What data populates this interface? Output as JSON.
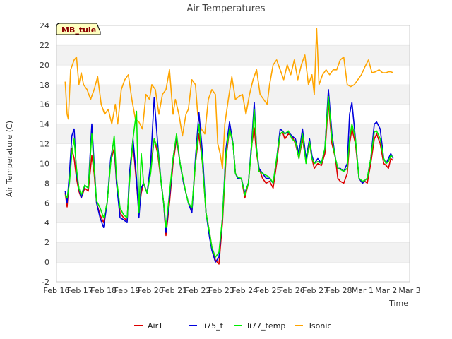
{
  "chart_data": {
    "type": "line",
    "title": "Air Temperatures",
    "xlabel": "Time",
    "ylabel": "Air Temperature (C)",
    "station_label": "MB_tule",
    "x_tick_labels": [
      "Feb 16",
      "Feb 17",
      "Feb 18",
      "Feb 19",
      "Feb 20",
      "Feb 21",
      "Feb 22",
      "Feb 23",
      "Feb 24",
      "Feb 25",
      "Feb 26",
      "Feb 27",
      "Feb 28",
      "Mar 1",
      "Mar 2",
      "Mar 3"
    ],
    "x_units": "days since Feb 16",
    "xlim": [
      0,
      15
    ],
    "ylim": [
      -2,
      24
    ],
    "y_ticks": [
      -2,
      0,
      2,
      4,
      6,
      8,
      10,
      12,
      14,
      16,
      18,
      20,
      22,
      24
    ],
    "grid": true,
    "legend_position": "bottom",
    "series": [
      {
        "name": "AirT",
        "color": "#dd0000",
        "x": [
          0.37,
          0.45,
          0.55,
          0.65,
          0.75,
          0.85,
          0.95,
          1.05,
          1.2,
          1.35,
          1.5,
          1.6,
          1.7,
          1.85,
          2.0,
          2.15,
          2.3,
          2.45,
          2.55,
          2.7,
          2.85,
          3.0,
          3.1,
          3.25,
          3.4,
          3.5,
          3.6,
          3.7,
          3.85,
          4.0,
          4.15,
          4.3,
          4.45,
          4.55,
          4.65,
          4.8,
          4.95,
          5.1,
          5.25,
          5.4,
          5.5,
          5.6,
          5.75,
          5.9,
          6.05,
          6.2,
          6.35,
          6.5,
          6.6,
          6.75,
          6.9,
          7.05,
          7.2,
          7.35,
          7.5,
          7.6,
          7.7,
          7.85,
          8.0,
          8.15,
          8.3,
          8.4,
          8.5,
          8.6,
          8.75,
          8.9,
          9.05,
          9.2,
          9.35,
          9.5,
          9.6,
          9.7,
          9.85,
          10.0,
          10.15,
          10.3,
          10.45,
          10.6,
          10.75,
          10.85,
          10.95,
          11.1,
          11.25,
          11.4,
          11.55,
          11.7,
          11.85,
          11.95,
          12.05,
          12.2,
          12.35,
          12.45,
          12.55,
          12.7,
          12.85,
          13.0,
          13.1,
          13.2,
          13.35,
          13.5,
          13.6,
          13.75,
          13.9,
          14.0,
          14.1,
          14.2,
          14.3
        ],
        "y": [
          7.0,
          5.6,
          8.5,
          11.5,
          10.5,
          8.5,
          7.2,
          6.5,
          7.5,
          7.2,
          10.8,
          9.0,
          6.0,
          4.8,
          4.0,
          6.0,
          10.2,
          11.5,
          8.0,
          5.0,
          4.5,
          4.2,
          8.5,
          12.0,
          8.0,
          5.0,
          7.0,
          8.0,
          7.0,
          9.5,
          12.5,
          11.0,
          8.0,
          6.0,
          2.7,
          6.0,
          10.0,
          12.5,
          10.0,
          8.0,
          7.0,
          6.0,
          5.2,
          10.0,
          13.0,
          10.0,
          5.0,
          3.0,
          1.5,
          0.2,
          -0.2,
          4.0,
          10.5,
          13.5,
          12.0,
          9.0,
          8.5,
          8.5,
          6.5,
          8.0,
          12.0,
          13.6,
          11.0,
          9.5,
          8.5,
          8.0,
          8.2,
          7.5,
          10.0,
          13.0,
          13.2,
          12.5,
          13.0,
          12.8,
          12.0,
          10.5,
          12.5,
          10.2,
          12.0,
          10.5,
          9.5,
          10.0,
          9.8,
          11.0,
          16.2,
          12.0,
          10.5,
          8.5,
          8.2,
          8.0,
          9.0,
          12.0,
          13.5,
          12.0,
          8.5,
          8.0,
          8.2,
          8.0,
          10.0,
          12.5,
          13.0,
          12.0,
          10.0,
          9.8,
          9.5,
          10.5,
          10.3
        ]
      },
      {
        "name": "li75_t",
        "color": "#0000dd",
        "x": [
          0.37,
          0.45,
          0.55,
          0.65,
          0.75,
          0.85,
          0.95,
          1.05,
          1.2,
          1.35,
          1.5,
          1.6,
          1.7,
          1.85,
          2.0,
          2.15,
          2.3,
          2.45,
          2.55,
          2.7,
          2.85,
          3.0,
          3.1,
          3.25,
          3.4,
          3.5,
          3.6,
          3.7,
          3.85,
          4.0,
          4.15,
          4.3,
          4.45,
          4.55,
          4.65,
          4.8,
          4.95,
          5.1,
          5.25,
          5.4,
          5.5,
          5.6,
          5.75,
          5.9,
          6.05,
          6.2,
          6.35,
          6.5,
          6.6,
          6.75,
          6.9,
          7.05,
          7.2,
          7.35,
          7.5,
          7.6,
          7.7,
          7.85,
          8.0,
          8.15,
          8.3,
          8.4,
          8.5,
          8.6,
          8.75,
          8.9,
          9.05,
          9.2,
          9.35,
          9.5,
          9.6,
          9.7,
          9.85,
          10.0,
          10.15,
          10.3,
          10.45,
          10.6,
          10.75,
          10.85,
          10.95,
          11.1,
          11.25,
          11.4,
          11.55,
          11.7,
          11.85,
          11.95,
          12.05,
          12.2,
          12.35,
          12.45,
          12.55,
          12.7,
          12.85,
          13.0,
          13.1,
          13.2,
          13.35,
          13.5,
          13.6,
          13.75,
          13.9,
          14.0,
          14.1,
          14.2,
          14.3
        ],
        "y": [
          7.2,
          6.0,
          9.0,
          12.8,
          13.5,
          9.0,
          7.5,
          6.5,
          7.8,
          7.5,
          14.0,
          10.0,
          6.0,
          4.5,
          3.5,
          6.0,
          10.5,
          12.5,
          8.0,
          4.5,
          4.3,
          4.0,
          9.0,
          12.5,
          8.5,
          4.5,
          7.5,
          8.0,
          7.0,
          10.0,
          16.7,
          12.0,
          8.0,
          6.0,
          3.0,
          6.5,
          10.5,
          12.8,
          10.0,
          8.0,
          7.0,
          6.0,
          5.0,
          10.5,
          15.2,
          11.0,
          5.0,
          2.5,
          1.2,
          0.0,
          0.5,
          4.5,
          11.5,
          14.2,
          12.0,
          9.0,
          8.5,
          8.5,
          7.0,
          8.0,
          12.5,
          16.2,
          11.5,
          9.5,
          9.0,
          8.5,
          8.5,
          8.0,
          10.5,
          13.5,
          13.3,
          13.0,
          13.2,
          12.8,
          12.5,
          11.0,
          13.5,
          10.5,
          12.5,
          10.8,
          10.0,
          10.5,
          10.0,
          11.5,
          17.5,
          13.0,
          10.5,
          9.5,
          9.5,
          9.2,
          10.0,
          15.0,
          16.2,
          12.5,
          8.5,
          8.0,
          8.3,
          8.5,
          10.5,
          14.0,
          14.2,
          13.5,
          10.5,
          10.0,
          10.5,
          11.0,
          10.5
        ]
      },
      {
        "name": "li77_temp",
        "color": "#00ee00",
        "x": [
          0.37,
          0.45,
          0.55,
          0.65,
          0.75,
          0.85,
          0.95,
          1.05,
          1.2,
          1.35,
          1.5,
          1.6,
          1.7,
          1.85,
          2.0,
          2.15,
          2.3,
          2.45,
          2.55,
          2.7,
          2.85,
          3.0,
          3.1,
          3.25,
          3.4,
          3.5,
          3.6,
          3.7,
          3.85,
          4.0,
          4.15,
          4.3,
          4.45,
          4.55,
          4.65,
          4.8,
          4.95,
          5.1,
          5.25,
          5.4,
          5.5,
          5.6,
          5.75,
          5.9,
          6.05,
          6.2,
          6.35,
          6.5,
          6.6,
          6.75,
          6.9,
          7.05,
          7.2,
          7.35,
          7.5,
          7.6,
          7.7,
          7.85,
          8.0,
          8.15,
          8.3,
          8.4,
          8.5,
          8.6,
          8.75,
          8.9,
          9.05,
          9.2,
          9.35,
          9.5,
          9.6,
          9.7,
          9.85,
          10.0,
          10.15,
          10.3,
          10.45,
          10.6,
          10.75,
          10.85,
          10.95,
          11.1,
          11.25,
          11.4,
          11.55,
          11.7,
          11.85,
          11.95,
          12.05,
          12.2,
          12.35,
          12.45,
          12.55,
          12.7,
          12.85,
          13.0,
          13.1,
          13.2,
          13.35,
          13.5,
          13.6,
          13.75,
          13.9,
          14.0,
          14.1,
          14.2,
          14.3
        ],
        "y": [
          6.8,
          6.5,
          8.0,
          11.0,
          12.5,
          9.5,
          7.5,
          6.8,
          7.8,
          7.5,
          13.0,
          9.5,
          6.2,
          5.5,
          4.5,
          6.0,
          10.0,
          12.8,
          8.5,
          5.5,
          4.8,
          4.5,
          8.0,
          12.5,
          15.3,
          5.0,
          11.0,
          8.0,
          7.0,
          9.0,
          12.5,
          11.5,
          8.0,
          6.0,
          3.5,
          7.0,
          10.5,
          13.0,
          10.0,
          8.2,
          7.0,
          6.0,
          5.5,
          10.0,
          14.0,
          10.0,
          5.0,
          3.0,
          1.5,
          0.5,
          1.0,
          4.5,
          11.0,
          13.5,
          12.0,
          9.0,
          8.6,
          8.5,
          6.8,
          8.0,
          12.0,
          15.5,
          11.5,
          9.2,
          9.0,
          8.8,
          8.6,
          8.0,
          10.5,
          13.0,
          13.2,
          13.0,
          13.3,
          12.5,
          12.2,
          10.5,
          13.0,
          10.0,
          12.2,
          10.5,
          10.0,
          10.2,
          10.0,
          11.5,
          16.8,
          12.5,
          10.5,
          9.5,
          9.4,
          9.2,
          9.5,
          12.5,
          14.0,
          12.5,
          8.5,
          8.2,
          8.3,
          8.5,
          10.5,
          13.2,
          13.3,
          12.5,
          10.5,
          10.0,
          10.2,
          10.8,
          10.6
        ]
      },
      {
        "name": "Tsonic",
        "color": "#ffa500",
        "x": [
          0.37,
          0.45,
          0.5,
          0.6,
          0.75,
          0.85,
          0.95,
          1.05,
          1.15,
          1.3,
          1.45,
          1.6,
          1.75,
          1.9,
          2.05,
          2.2,
          2.35,
          2.5,
          2.6,
          2.75,
          2.9,
          3.05,
          3.2,
          3.35,
          3.5,
          3.65,
          3.8,
          3.95,
          4.05,
          4.2,
          4.35,
          4.5,
          4.65,
          4.8,
          4.95,
          5.05,
          5.2,
          5.35,
          5.5,
          5.6,
          5.75,
          5.9,
          6.0,
          6.15,
          6.3,
          6.45,
          6.6,
          6.75,
          6.85,
          6.95,
          7.05,
          7.15,
          7.3,
          7.45,
          7.6,
          7.75,
          7.9,
          8.05,
          8.2,
          8.35,
          8.5,
          8.65,
          8.8,
          8.95,
          9.05,
          9.2,
          9.35,
          9.5,
          9.65,
          9.8,
          9.95,
          10.1,
          10.25,
          10.4,
          10.55,
          10.7,
          10.85,
          10.95,
          11.05,
          11.15,
          11.3,
          11.45,
          11.6,
          11.75,
          11.9,
          12.05,
          12.2,
          12.35,
          12.5,
          12.65,
          12.8,
          12.95,
          13.1,
          13.25,
          13.4,
          13.55,
          13.7,
          13.85,
          14.0,
          14.1,
          14.2,
          14.3
        ],
        "y": [
          18.3,
          15.0,
          14.5,
          19.5,
          20.5,
          20.8,
          18.0,
          19.2,
          18.0,
          17.5,
          16.5,
          17.5,
          18.8,
          16.0,
          15.0,
          15.5,
          14.0,
          16.0,
          14.0,
          17.5,
          18.5,
          19.0,
          16.5,
          14.5,
          14.2,
          13.5,
          17.0,
          16.5,
          18.0,
          17.5,
          15.0,
          17.0,
          17.5,
          19.5,
          15.0,
          16.5,
          15.0,
          12.8,
          15.0,
          15.5,
          18.5,
          18.0,
          15.0,
          13.5,
          13.0,
          16.5,
          17.5,
          17.0,
          12.0,
          11.0,
          9.5,
          14.0,
          16.5,
          18.8,
          16.5,
          16.8,
          17.0,
          15.0,
          17.0,
          18.5,
          19.5,
          17.0,
          16.5,
          16.0,
          18.0,
          20.0,
          20.5,
          19.5,
          18.5,
          20.0,
          19.0,
          20.5,
          18.5,
          20.0,
          21.0,
          18.0,
          19.0,
          17.0,
          23.7,
          18.0,
          19.0,
          19.5,
          19.0,
          19.5,
          19.5,
          20.5,
          20.8,
          18.0,
          17.8,
          18.0,
          18.5,
          19.0,
          19.8,
          20.5,
          19.2,
          19.3,
          19.5,
          19.2,
          19.2,
          19.3,
          19.3,
          19.2
        ]
      }
    ]
  }
}
